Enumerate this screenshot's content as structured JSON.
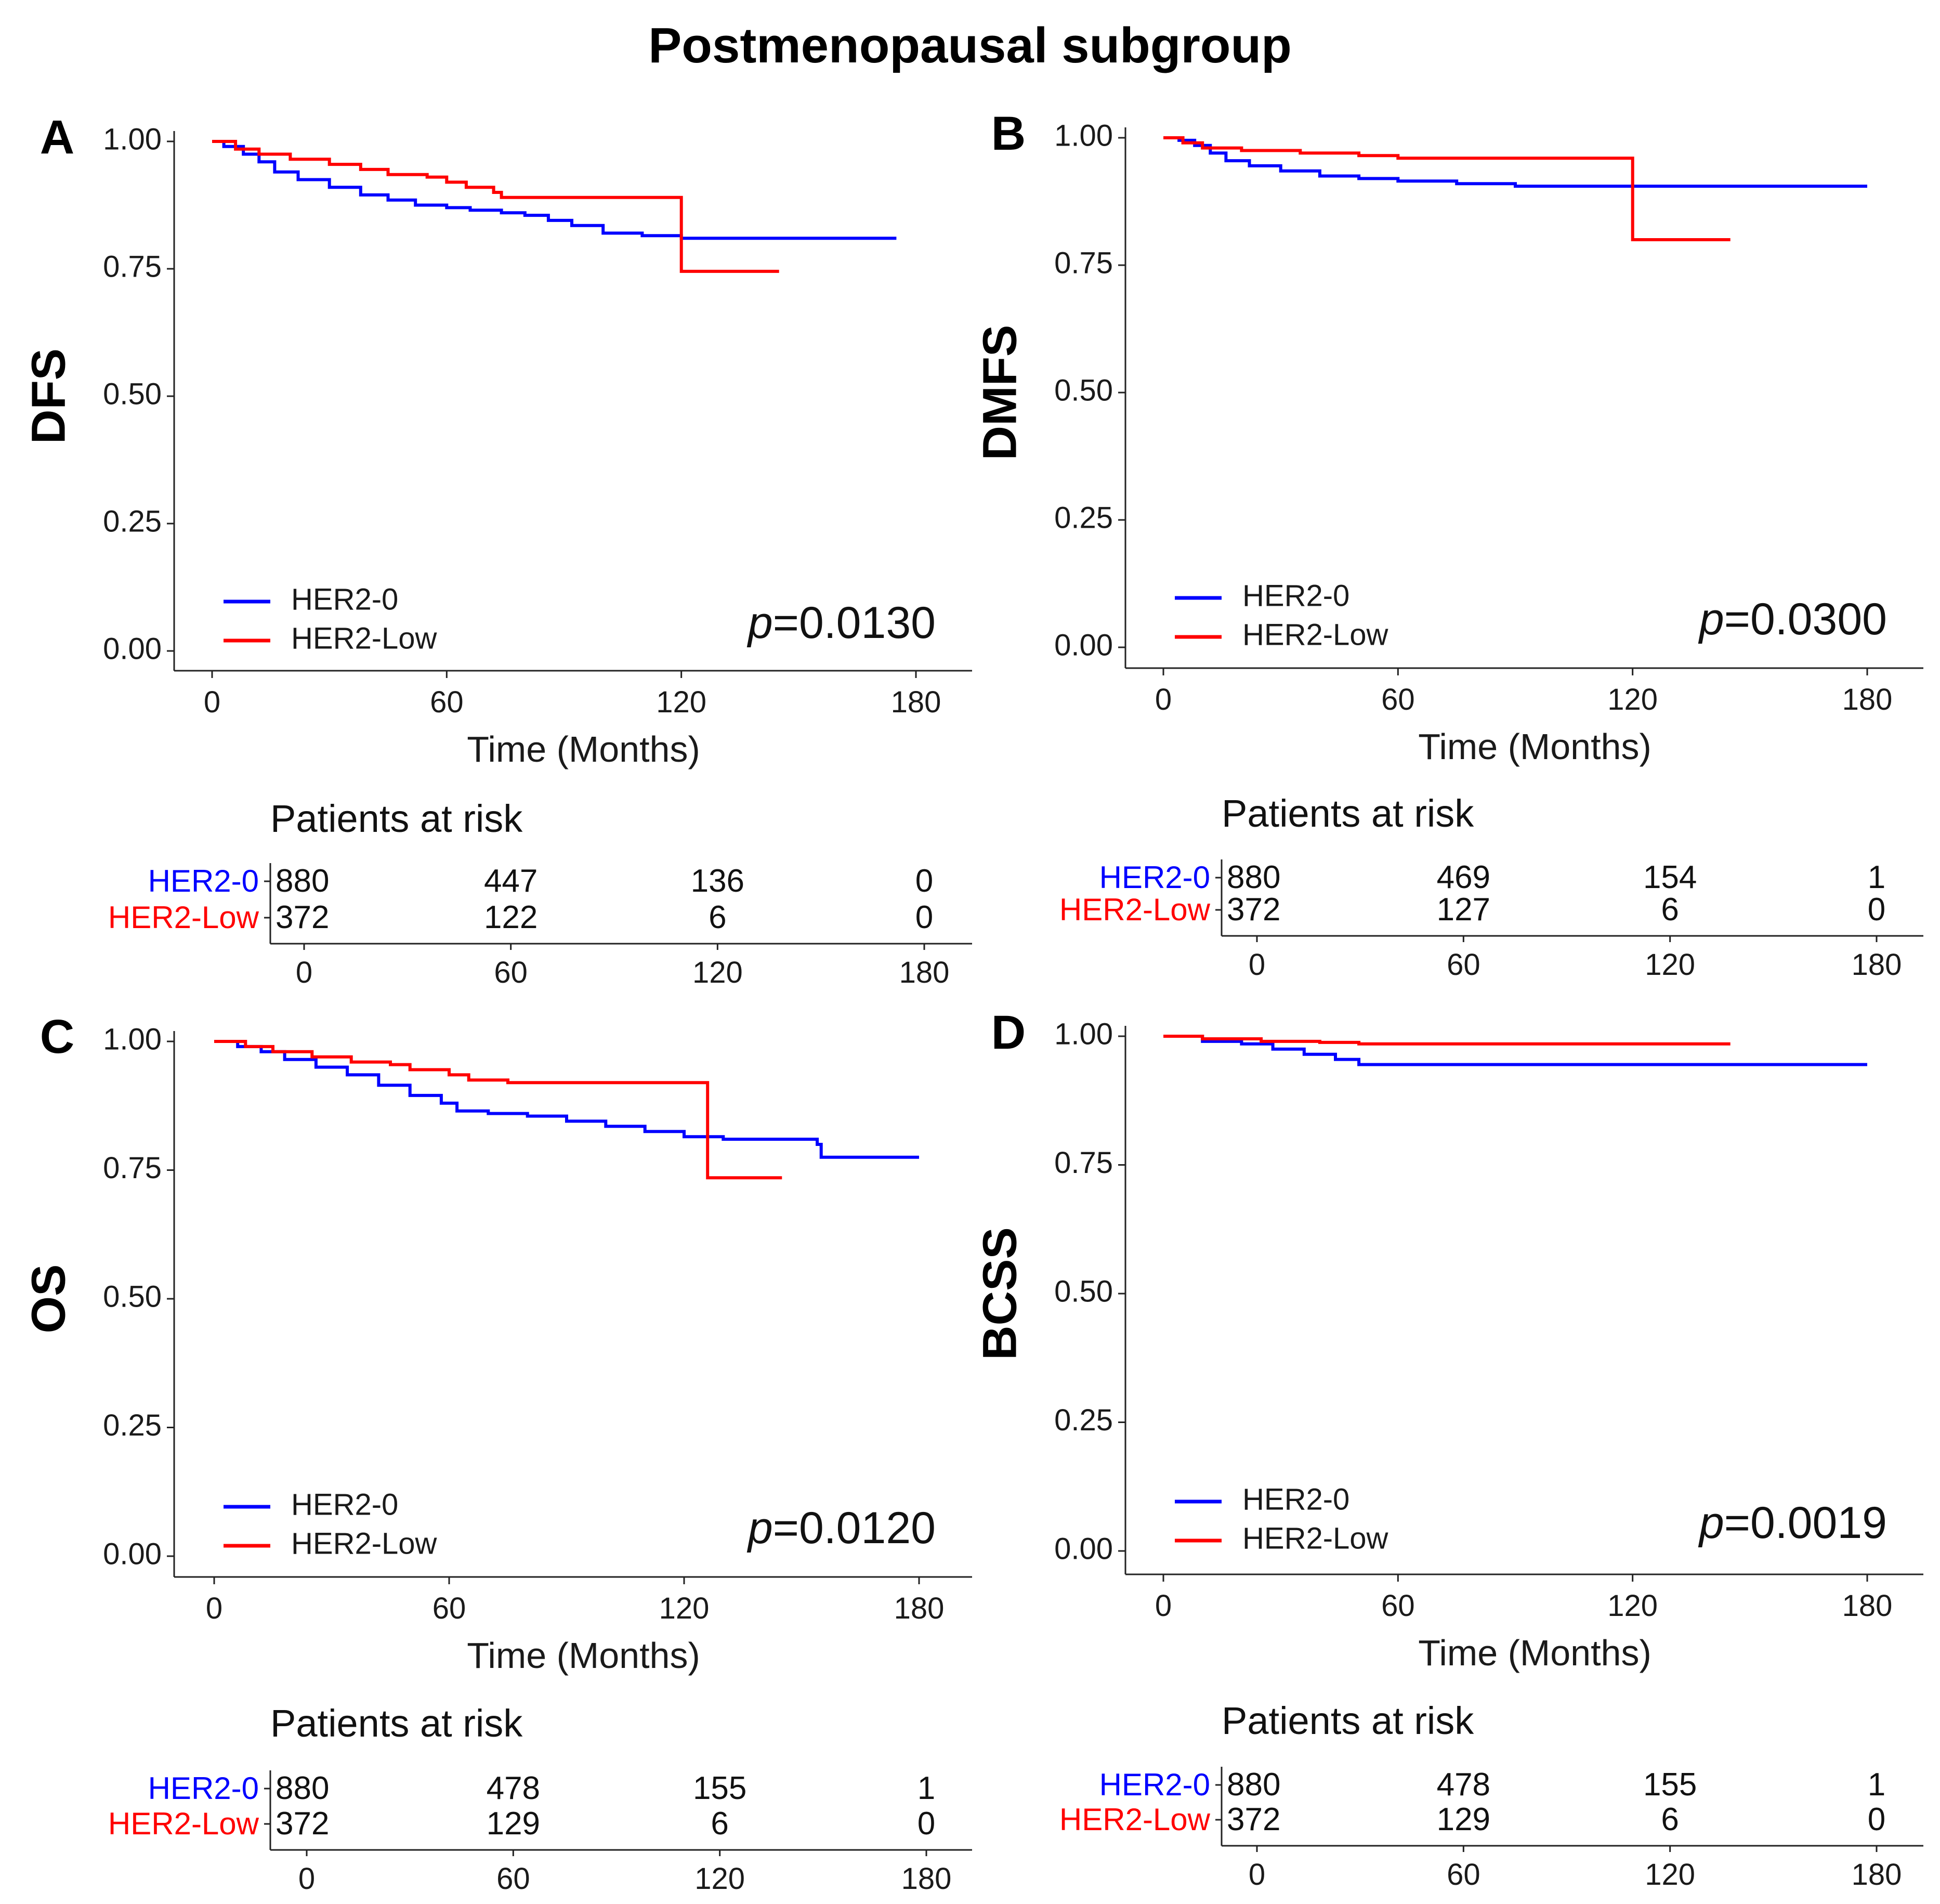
{
  "figure": {
    "title": "Postmenopausal subgroup"
  },
  "chart_data": [
    {
      "type": "line",
      "panel": "A",
      "ylabel": "DFS",
      "xlabel": "Time (Months)",
      "xticks": [
        0,
        60,
        120,
        180
      ],
      "yticks": [
        "0.00",
        "0.25",
        "0.50",
        "0.75",
        "1.00"
      ],
      "xlim": [
        0,
        180
      ],
      "ylim": [
        0,
        1
      ],
      "legend": [
        "HER2-0",
        "HER2-Low"
      ],
      "p_prefix": "p",
      "p_value": "=0.0130",
      "series": [
        {
          "name": "HER2-0",
          "color": "#0000ff",
          "points": [
            [
              0,
              1.0
            ],
            [
              3,
              0.99
            ],
            [
              8,
              0.975
            ],
            [
              12,
              0.96
            ],
            [
              16,
              0.94
            ],
            [
              22,
              0.925
            ],
            [
              30,
              0.91
            ],
            [
              38,
              0.895
            ],
            [
              45,
              0.885
            ],
            [
              52,
              0.875
            ],
            [
              60,
              0.87
            ],
            [
              66,
              0.865
            ],
            [
              74,
              0.86
            ],
            [
              80,
              0.855
            ],
            [
              86,
              0.845
            ],
            [
              92,
              0.835
            ],
            [
              100,
              0.82
            ],
            [
              110,
              0.815
            ],
            [
              120,
              0.81
            ],
            [
              145,
              0.81
            ],
            [
              175,
              0.81
            ]
          ]
        },
        {
          "name": "HER2-Low",
          "color": "#ff0000",
          "points": [
            [
              0,
              1.0
            ],
            [
              6,
              0.985
            ],
            [
              12,
              0.975
            ],
            [
              20,
              0.965
            ],
            [
              30,
              0.955
            ],
            [
              38,
              0.945
            ],
            [
              45,
              0.935
            ],
            [
              55,
              0.93
            ],
            [
              60,
              0.92
            ],
            [
              65,
              0.91
            ],
            [
              72,
              0.9
            ],
            [
              74,
              0.89
            ],
            [
              95,
              0.89
            ],
            [
              119,
              0.89
            ],
            [
              120,
              0.745
            ],
            [
              145,
              0.745
            ]
          ]
        }
      ],
      "risk": {
        "title": "Patients at risk",
        "rows": [
          {
            "name": "HER2-0",
            "values": [
              "880",
              "447",
              "136",
              "0"
            ]
          },
          {
            "name": "HER2-Low",
            "values": [
              "372",
              "122",
              "6",
              "0"
            ]
          }
        ],
        "xticks": [
          0,
          60,
          120,
          180
        ]
      }
    },
    {
      "type": "line",
      "panel": "B",
      "ylabel": "DMFS",
      "xlabel": "Time (Months)",
      "xticks": [
        0,
        60,
        120,
        180
      ],
      "yticks": [
        "0.00",
        "0.25",
        "0.50",
        "0.75",
        "1.00"
      ],
      "xlim": [
        0,
        180
      ],
      "ylim": [
        0,
        1
      ],
      "legend": [
        "HER2-0",
        "HER2-Low"
      ],
      "p_prefix": "p",
      "p_value": "=0.0300",
      "series": [
        {
          "name": "HER2-0",
          "color": "#0000ff",
          "points": [
            [
              0,
              1.0
            ],
            [
              4,
              0.995
            ],
            [
              8,
              0.985
            ],
            [
              12,
              0.97
            ],
            [
              16,
              0.955
            ],
            [
              22,
              0.945
            ],
            [
              30,
              0.935
            ],
            [
              40,
              0.925
            ],
            [
              50,
              0.92
            ],
            [
              60,
              0.915
            ],
            [
              75,
              0.91
            ],
            [
              90,
              0.905
            ],
            [
              120,
              0.905
            ],
            [
              150,
              0.905
            ],
            [
              180,
              0.905
            ]
          ]
        },
        {
          "name": "HER2-Low",
          "color": "#ff0000",
          "points": [
            [
              0,
              1.0
            ],
            [
              5,
              0.99
            ],
            [
              10,
              0.98
            ],
            [
              20,
              0.975
            ],
            [
              35,
              0.97
            ],
            [
              50,
              0.965
            ],
            [
              60,
              0.96
            ],
            [
              90,
              0.96
            ],
            [
              119,
              0.96
            ],
            [
              120,
              0.8
            ],
            [
              145,
              0.8
            ]
          ]
        }
      ],
      "risk": {
        "title": "Patients at risk",
        "rows": [
          {
            "name": "HER2-0",
            "values": [
              "880",
              "469",
              "154",
              "1"
            ]
          },
          {
            "name": "HER2-Low",
            "values": [
              "372",
              "127",
              "6",
              "0"
            ]
          }
        ],
        "xticks": [
          0,
          60,
          120,
          180
        ]
      }
    },
    {
      "type": "line",
      "panel": "C",
      "ylabel": "OS",
      "xlabel": "Time (Months)",
      "xticks": [
        0,
        60,
        120,
        180
      ],
      "yticks": [
        "0.00",
        "0.25",
        "0.50",
        "0.75",
        "1.00"
      ],
      "xlim": [
        0,
        180
      ],
      "ylim": [
        0,
        1
      ],
      "legend": [
        "HER2-0",
        "HER2-Low"
      ],
      "p_prefix": "p",
      "p_value": "=0.0120",
      "series": [
        {
          "name": "HER2-0",
          "color": "#0000ff",
          "points": [
            [
              0,
              1.0
            ],
            [
              6,
              0.99
            ],
            [
              12,
              0.98
            ],
            [
              18,
              0.965
            ],
            [
              26,
              0.95
            ],
            [
              34,
              0.935
            ],
            [
              42,
              0.915
            ],
            [
              50,
              0.895
            ],
            [
              58,
              0.88
            ],
            [
              62,
              0.865
            ],
            [
              70,
              0.86
            ],
            [
              80,
              0.855
            ],
            [
              90,
              0.845
            ],
            [
              100,
              0.835
            ],
            [
              110,
              0.825
            ],
            [
              120,
              0.815
            ],
            [
              130,
              0.81
            ],
            [
              145,
              0.81
            ],
            [
              154,
              0.8
            ],
            [
              155,
              0.775
            ],
            [
              180,
              0.775
            ]
          ]
        },
        {
          "name": "HER2-Low",
          "color": "#ff0000",
          "points": [
            [
              0,
              1.0
            ],
            [
              8,
              0.99
            ],
            [
              15,
              0.98
            ],
            [
              25,
              0.97
            ],
            [
              35,
              0.96
            ],
            [
              45,
              0.955
            ],
            [
              50,
              0.945
            ],
            [
              60,
              0.935
            ],
            [
              65,
              0.925
            ],
            [
              75,
              0.92
            ],
            [
              100,
              0.92
            ],
            [
              125,
              0.92
            ],
            [
              126,
              0.735
            ],
            [
              145,
              0.735
            ]
          ]
        }
      ],
      "risk": {
        "title": "Patients at risk",
        "rows": [
          {
            "name": "HER2-0",
            "values": [
              "880",
              "478",
              "155",
              "1"
            ]
          },
          {
            "name": "HER2-Low",
            "values": [
              "372",
              "129",
              "6",
              "0"
            ]
          }
        ],
        "xticks": [
          0,
          60,
          120,
          180
        ]
      }
    },
    {
      "type": "line",
      "panel": "D",
      "ylabel": "BCSS",
      "xlabel": "Time (Months)",
      "xticks": [
        0,
        60,
        120,
        180
      ],
      "yticks": [
        "0.00",
        "0.25",
        "0.50",
        "0.75",
        "1.00"
      ],
      "xlim": [
        0,
        180
      ],
      "ylim": [
        0,
        1
      ],
      "legend": [
        "HER2-0",
        "HER2-Low"
      ],
      "p_prefix": "p",
      "p_value": "=0.0019",
      "series": [
        {
          "name": "HER2-0",
          "color": "#0000ff",
          "points": [
            [
              0,
              1.0
            ],
            [
              10,
              0.99
            ],
            [
              20,
              0.985
            ],
            [
              28,
              0.975
            ],
            [
              36,
              0.965
            ],
            [
              44,
              0.955
            ],
            [
              50,
              0.945
            ],
            [
              60,
              0.945
            ],
            [
              90,
              0.945
            ],
            [
              120,
              0.945
            ],
            [
              150,
              0.945
            ],
            [
              180,
              0.945
            ]
          ]
        },
        {
          "name": "HER2-Low",
          "color": "#ff0000",
          "points": [
            [
              0,
              1.0
            ],
            [
              10,
              0.995
            ],
            [
              25,
              0.99
            ],
            [
              40,
              0.988
            ],
            [
              50,
              0.985
            ],
            [
              60,
              0.985
            ],
            [
              90,
              0.985
            ],
            [
              120,
              0.985
            ],
            [
              145,
              0.985
            ]
          ]
        }
      ],
      "risk": {
        "title": "Patients at risk",
        "rows": [
          {
            "name": "HER2-0",
            "values": [
              "880",
              "478",
              "155",
              "1"
            ]
          },
          {
            "name": "HER2-Low",
            "values": [
              "372",
              "129",
              "6",
              "0"
            ]
          }
        ],
        "xticks": [
          0,
          60,
          120,
          180
        ]
      }
    }
  ]
}
